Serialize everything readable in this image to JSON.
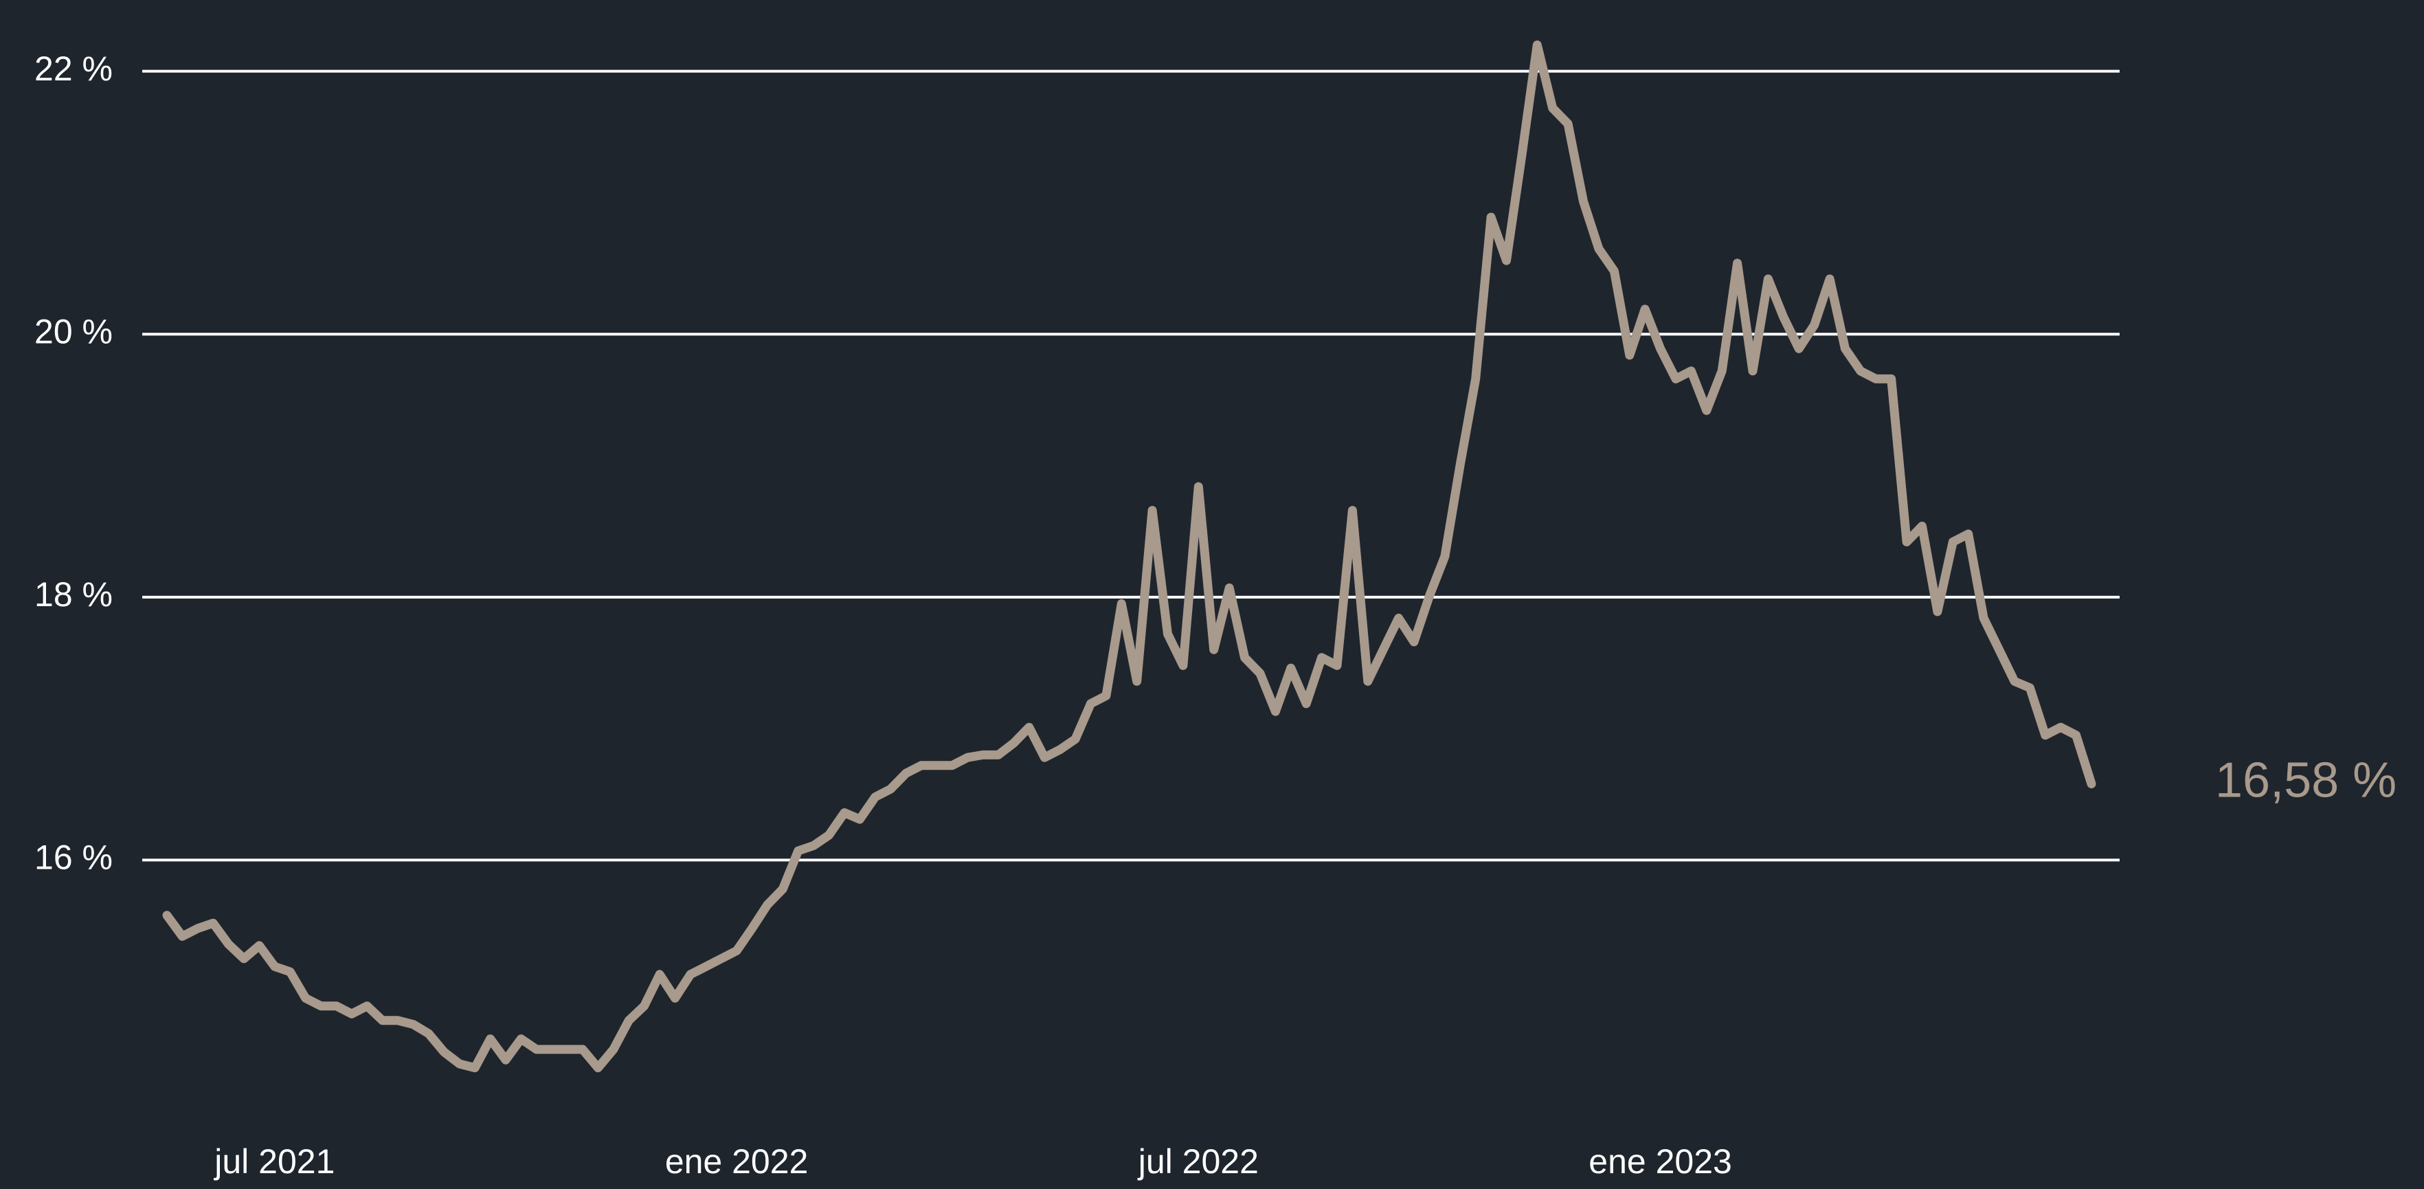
{
  "chart_data": {
    "type": "line",
    "categories": [
      null,
      null,
      null,
      null,
      null,
      null,
      null,
      "jul 2021",
      null,
      null,
      null,
      null,
      null,
      null,
      null,
      null,
      null,
      null,
      null,
      null,
      null,
      null,
      null,
      null,
      null,
      null,
      null,
      null,
      null,
      null,
      null,
      null,
      null,
      null,
      null,
      null,
      null,
      "ene 2022",
      null,
      null,
      null,
      null,
      null,
      null,
      null,
      null,
      null,
      null,
      null,
      null,
      null,
      null,
      null,
      null,
      null,
      null,
      null,
      null,
      null,
      null,
      null,
      null,
      null,
      null,
      null,
      null,
      null,
      "jul 2022",
      null,
      null,
      null,
      null,
      null,
      null,
      null,
      null,
      null,
      null,
      null,
      null,
      null,
      null,
      null,
      null,
      null,
      null,
      null,
      null,
      null,
      null,
      null,
      null,
      null,
      null,
      null,
      null,
      null,
      "ene 2023",
      null,
      null,
      null,
      null,
      null,
      null,
      null,
      null,
      null,
      null,
      null,
      null,
      null,
      null,
      null,
      null,
      null,
      null,
      null,
      null,
      null,
      null,
      null,
      null,
      null,
      null,
      null,
      null
    ],
    "values": [
      15.58,
      15.42,
      15.48,
      15.52,
      15.36,
      15.25,
      15.35,
      15.19,
      15.15,
      14.95,
      14.89,
      14.89,
      14.83,
      14.89,
      14.78,
      14.78,
      14.75,
      14.68,
      14.54,
      14.45,
      14.42,
      14.64,
      14.48,
      14.64,
      14.56,
      14.56,
      14.56,
      14.56,
      14.42,
      14.56,
      14.78,
      14.89,
      15.13,
      14.95,
      15.13,
      15.19,
      15.25,
      15.31,
      15.48,
      15.66,
      15.78,
      16.07,
      16.11,
      16.19,
      16.36,
      16.31,
      16.48,
      16.54,
      16.66,
      16.72,
      16.72,
      16.72,
      16.78,
      16.8,
      16.8,
      16.89,
      17.01,
      16.78,
      16.84,
      16.92,
      17.19,
      17.25,
      17.95,
      17.36,
      18.66,
      17.72,
      17.48,
      18.84,
      17.6,
      18.07,
      17.54,
      17.42,
      17.13,
      17.46,
      17.19,
      17.54,
      17.48,
      18.66,
      17.36,
      17.6,
      17.84,
      17.66,
      18.01,
      18.31,
      19.01,
      19.66,
      20.89,
      20.56,
      21.36,
      22.2,
      21.72,
      21.6,
      21.01,
      20.65,
      20.48,
      19.84,
      20.19,
      19.89,
      19.66,
      19.72,
      19.42,
      19.72,
      20.54,
      19.72,
      20.42,
      20.13,
      19.89,
      20.07,
      20.42,
      19.89,
      19.72,
      19.66,
      19.66,
      18.42,
      18.54,
      17.89,
      18.42,
      18.48,
      17.84,
      17.6,
      17.36,
      17.31,
      16.95,
      17.01,
      16.95,
      16.58
    ],
    "value_labels": [
      null,
      null,
      null,
      null,
      null,
      null,
      null,
      null,
      null,
      null,
      null,
      null,
      null,
      null,
      null,
      null,
      null,
      null,
      null,
      null,
      null,
      null,
      null,
      null,
      null,
      null,
      null,
      null,
      null,
      null,
      null,
      null,
      null,
      null,
      null,
      null,
      null,
      null,
      null,
      null,
      null,
      null,
      null,
      null,
      null,
      null,
      null,
      null,
      null,
      null,
      null,
      null,
      null,
      null,
      null,
      null,
      null,
      null,
      null,
      null,
      null,
      null,
      null,
      null,
      null,
      null,
      null,
      null,
      null,
      null,
      null,
      null,
      null,
      null,
      null,
      null,
      null,
      null,
      null,
      null,
      null,
      null,
      null,
      null,
      null,
      null,
      null,
      null,
      null,
      null,
      null,
      null,
      null,
      null,
      null,
      null,
      null,
      null,
      null,
      null,
      null,
      null,
      null,
      null,
      null,
      null,
      null,
      null,
      null,
      null,
      null,
      null,
      null,
      null,
      null,
      null,
      null,
      null,
      null,
      null,
      null,
      null,
      null,
      null,
      null,
      "16,58 %"
    ],
    "color": "#a89a8c",
    "ylim": [
      14,
      22.5
    ],
    "yticks": [
      {
        "value": 16,
        "label": "16 %"
      },
      {
        "value": 18,
        "label": "18 %"
      },
      {
        "value": 20,
        "label": "20 %"
      },
      {
        "value": 22,
        "label": "22 %"
      }
    ],
    "grid": true
  }
}
